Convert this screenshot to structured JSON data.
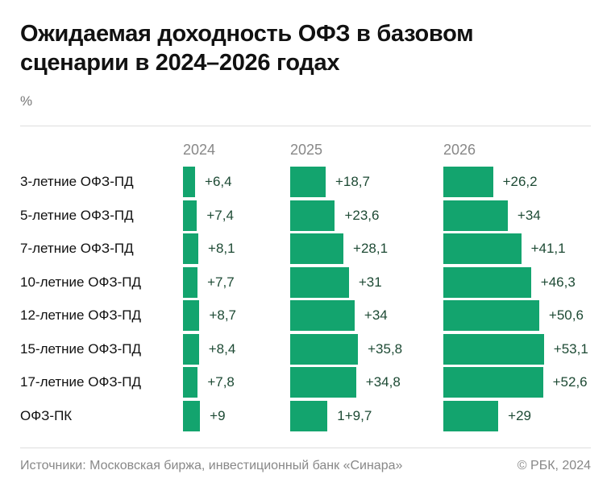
{
  "title": "Ожидаемая доходность ОФЗ в базовом сценарии в 2024–2026 годах",
  "unit": "%",
  "footer": {
    "source": "Источники: Московская биржа, инвестиционный банк «Синара»",
    "copyright": "© РБК, 2024"
  },
  "colors": {
    "bar": "#13a46e",
    "value_text": "#1d4a34"
  },
  "chart_data": {
    "type": "bar",
    "orientation": "horizontal",
    "categories": [
      "3-летние ОФЗ-ПД",
      "5-летние ОФЗ-ПД",
      "7-летние ОФЗ-ПД",
      "10-летние ОФЗ-ПД",
      "12-летние ОФЗ-ПД",
      "15-летние ОФЗ-ПД",
      "17-летние ОФЗ-ПД",
      "ОФЗ-ПК"
    ],
    "series": [
      {
        "name": "2024",
        "values": [
          6.4,
          7.4,
          8.1,
          7.7,
          8.7,
          8.4,
          7.8,
          9
        ],
        "labels": [
          "+6,4",
          "+7,4",
          "+8,1",
          "+7,7",
          "+8,7",
          "+8,4",
          "+7,8",
          "+9"
        ]
      },
      {
        "name": "2025",
        "values": [
          18.7,
          23.6,
          28.1,
          31,
          34,
          35.8,
          34.8,
          19.7
        ],
        "labels": [
          "+18,7",
          "+23,6",
          "+28,1",
          "+31",
          "+34",
          "+35,8",
          "+34,8",
          "1+9,7"
        ]
      },
      {
        "name": "2026",
        "values": [
          26.2,
          34,
          41.1,
          46.3,
          50.6,
          53.1,
          52.6,
          29
        ],
        "labels": [
          "+26,2",
          "+34",
          "+41,1",
          "+46,3",
          "+50,6",
          "+53,1",
          "+52,6",
          "+29"
        ]
      }
    ],
    "grid": false
  }
}
